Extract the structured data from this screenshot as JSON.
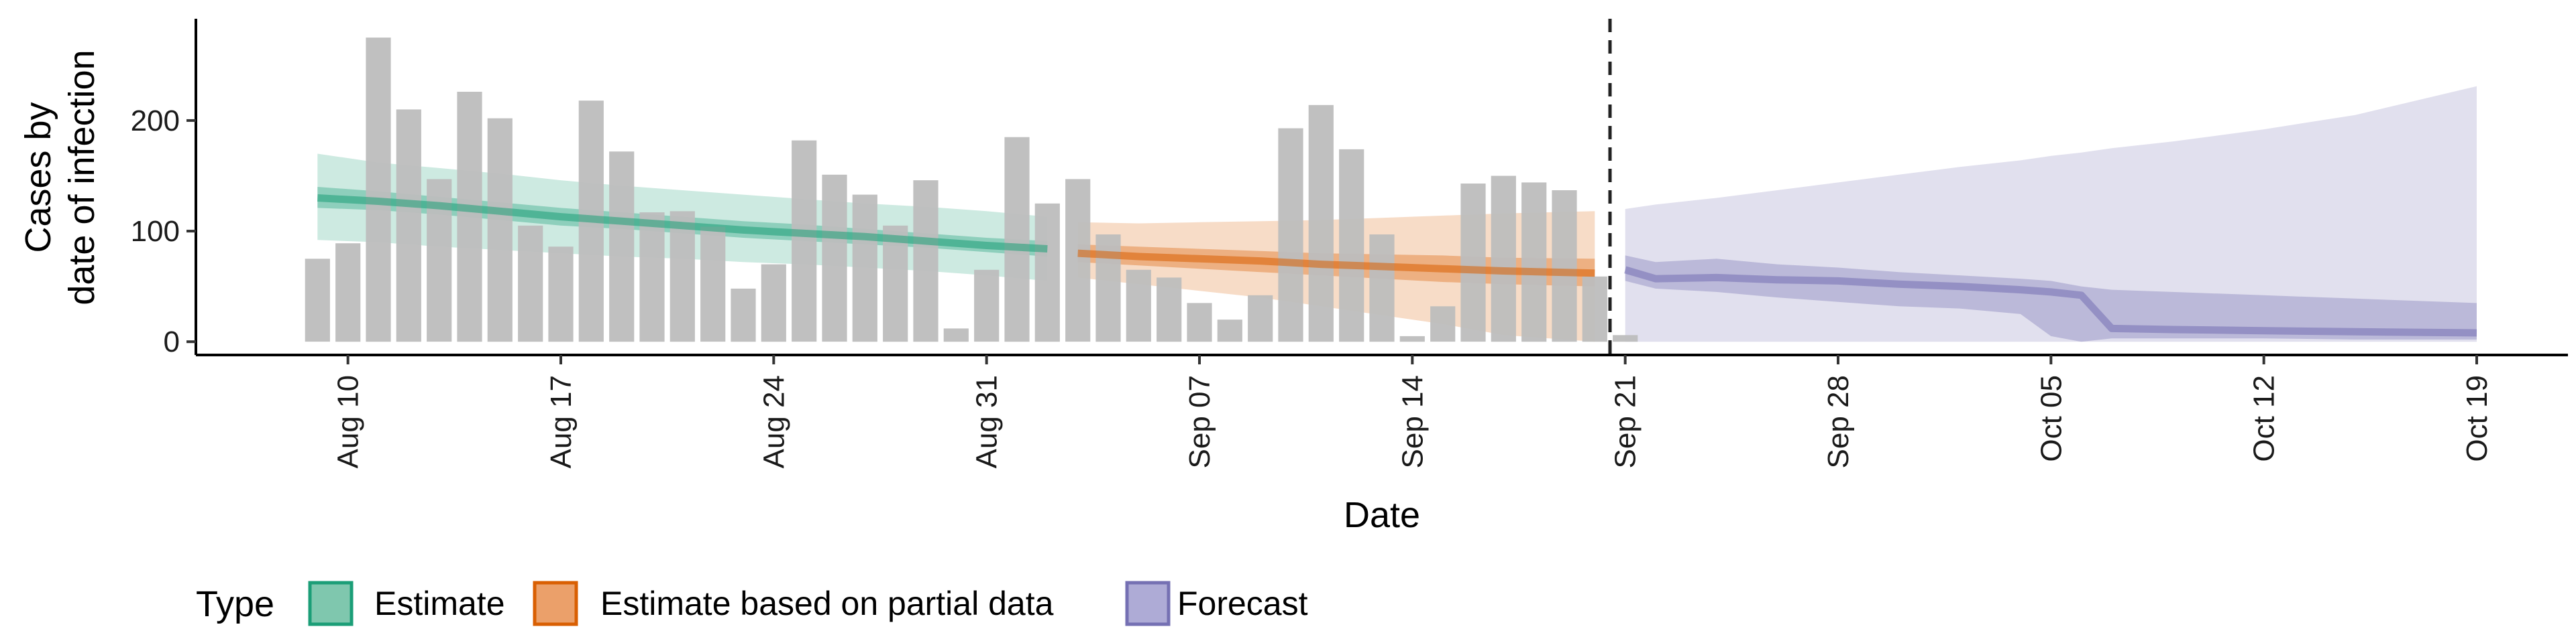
{
  "chart_data": {
    "type": "bar",
    "title": "",
    "xlabel": "Date",
    "ylabel_lines": [
      "Cases by",
      "date of infection"
    ],
    "ylim": [
      -12,
      292
    ],
    "xlim_days": [
      "2024-08-05",
      "2024-10-22"
    ],
    "y_ticks": [
      0,
      100,
      200
    ],
    "x_ticks": [
      {
        "date": "2024-08-10",
        "label": "Aug 10"
      },
      {
        "date": "2024-08-17",
        "label": "Aug 17"
      },
      {
        "date": "2024-08-24",
        "label": "Aug 24"
      },
      {
        "date": "2024-08-31",
        "label": "Aug 31"
      },
      {
        "date": "2024-09-07",
        "label": "Sep 07"
      },
      {
        "date": "2024-09-14",
        "label": "Sep 14"
      },
      {
        "date": "2024-09-21",
        "label": "Sep 21"
      },
      {
        "date": "2024-09-28",
        "label": "Sep 28"
      },
      {
        "date": "2024-10-05",
        "label": "Oct 05"
      },
      {
        "date": "2024-10-12",
        "label": "Oct 12"
      },
      {
        "date": "2024-10-19",
        "label": "Oct 19"
      }
    ],
    "bars": {
      "color": "#bdbdbd",
      "start_date": "2024-08-09",
      "values": [
        75,
        89,
        275,
        210,
        147,
        226,
        202,
        105,
        86,
        218,
        172,
        117,
        118,
        104,
        48,
        70,
        182,
        151,
        133,
        105,
        146,
        12,
        65,
        185,
        125,
        147,
        97,
        65,
        58,
        35,
        20,
        42,
        193,
        214,
        174,
        97,
        5,
        32,
        143,
        150,
        144,
        137,
        59,
        6
      ]
    },
    "cutoff_date": "2024-09-20",
    "series": [
      {
        "name": "Estimate",
        "fill": "#1b9e77",
        "stroke": "#1b9e77",
        "dates": [
          "2024-08-09",
          "2024-08-11",
          "2024-08-13",
          "2024-08-15",
          "2024-08-17",
          "2024-08-19",
          "2024-08-21",
          "2024-08-23",
          "2024-08-25",
          "2024-08-27",
          "2024-08-29",
          "2024-08-31",
          "2024-09-02"
        ],
        "median": [
          130,
          127,
          123,
          118,
          113,
          109,
          105,
          101,
          98,
          95,
          91,
          87,
          84
        ],
        "inner_lower": [
          121,
          119,
          115,
          110,
          105,
          102,
          98,
          94,
          91,
          88,
          85,
          81,
          77
        ],
        "inner_upper": [
          140,
          136,
          131,
          126,
          121,
          117,
          113,
          109,
          106,
          102,
          98,
          94,
          91
        ],
        "outer_lower": [
          92,
          90,
          86,
          83,
          80,
          77,
          75,
          72,
          70,
          67,
          64,
          60,
          55
        ],
        "outer_upper": [
          170,
          162,
          157,
          152,
          146,
          141,
          137,
          133,
          129,
          125,
          122,
          118,
          113
        ]
      },
      {
        "name": "Estimate based on partial data",
        "fill": "#d95f02",
        "stroke": "#d95f02",
        "dates": [
          "2024-09-03",
          "2024-09-05",
          "2024-09-07",
          "2024-09-09",
          "2024-09-11",
          "2024-09-13",
          "2024-09-15",
          "2024-09-17",
          "2024-09-20"
        ],
        "median": [
          80,
          77,
          75,
          73,
          70,
          68,
          66,
          64,
          62
        ],
        "inner_lower": [
          72,
          69,
          66,
          63,
          60,
          57,
          54,
          52,
          50
        ],
        "inner_upper": [
          88,
          86,
          84,
          82,
          80,
          79,
          78,
          76,
          75
        ],
        "outer_lower": [
          58,
          52,
          46,
          40,
          32,
          24,
          16,
          6,
          0
        ],
        "outer_upper": [
          108,
          107,
          108,
          109,
          110,
          112,
          114,
          116,
          118
        ]
      },
      {
        "name": "Forecast",
        "fill": "#7570b3",
        "stroke": "#7570b3",
        "dates": [
          "2024-09-21",
          "2024-09-22",
          "2024-09-24",
          "2024-09-26",
          "2024-09-28",
          "2024-09-30",
          "2024-10-02",
          "2024-10-04",
          "2024-10-05",
          "2024-10-06",
          "2024-10-07",
          "2024-10-09",
          "2024-10-12",
          "2024-10-15",
          "2024-10-19"
        ],
        "median": [
          65,
          57,
          58,
          56,
          55,
          52,
          50,
          47,
          45,
          42,
          12,
          11,
          10,
          9,
          8
        ],
        "inner_lower": [
          55,
          48,
          45,
          40,
          36,
          32,
          30,
          25,
          5,
          0,
          3,
          3,
          3,
          2,
          2
        ],
        "inner_upper": [
          78,
          72,
          75,
          70,
          67,
          63,
          60,
          57,
          55,
          50,
          47,
          45,
          42,
          39,
          35
        ],
        "outer_lower": [
          0,
          0,
          0,
          0,
          0,
          0,
          0,
          0,
          0,
          0,
          0,
          0,
          0,
          0,
          0
        ],
        "outer_upper": [
          120,
          124,
          130,
          137,
          144,
          151,
          158,
          164,
          168,
          171,
          175,
          181,
          192,
          205,
          231
        ]
      }
    ],
    "legend": {
      "title": "Type",
      "position": "bottom",
      "items": [
        {
          "label": "Estimate",
          "fill": "#7fc7ae",
          "stroke": "#1b9e77"
        },
        {
          "label": "Estimate based on partial data",
          "fill": "#eba06a",
          "stroke": "#d95f02"
        },
        {
          "label": "Forecast",
          "fill": "#aeabd6",
          "stroke": "#7570b3"
        }
      ]
    },
    "grid": false
  }
}
